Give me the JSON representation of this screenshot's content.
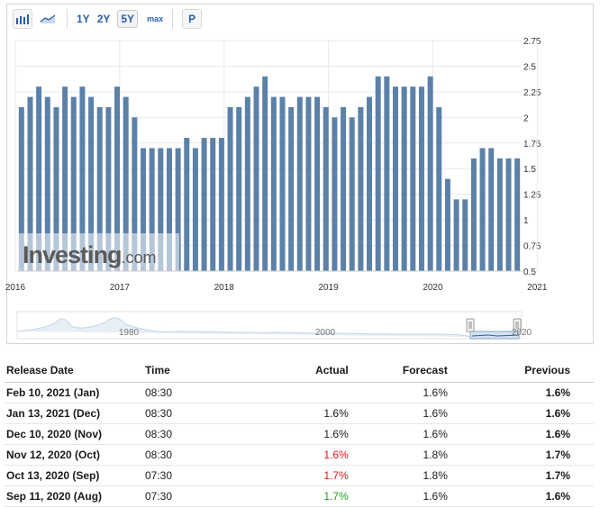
{
  "toolbar": {
    "ranges": [
      "1Y",
      "2Y",
      "5Y"
    ],
    "active_range": "5Y",
    "max_label": "max",
    "p_label": "P",
    "icons": [
      "bar-chart-icon",
      "area-chart-icon"
    ]
  },
  "chart_data": {
    "type": "bar",
    "values": [
      2.1,
      2.2,
      2.3,
      2.2,
      2.1,
      2.3,
      2.2,
      2.3,
      2.2,
      2.1,
      2.1,
      2.3,
      2.2,
      2.0,
      1.7,
      1.7,
      1.7,
      1.7,
      1.7,
      1.8,
      1.7,
      1.8,
      1.8,
      1.8,
      2.1,
      2.1,
      2.2,
      2.3,
      2.4,
      2.2,
      2.2,
      2.1,
      2.2,
      2.2,
      2.2,
      2.1,
      2.0,
      2.1,
      2.0,
      2.1,
      2.2,
      2.4,
      2.4,
      2.3,
      2.3,
      2.3,
      2.3,
      2.4,
      2.1,
      1.4,
      1.2,
      1.2,
      1.6,
      1.7,
      1.7,
      1.6,
      1.6,
      1.6
    ],
    "ylim": [
      0.5,
      2.75
    ],
    "yticks": [
      "0.5",
      "0.75",
      "1",
      "1.25",
      "1.5",
      "1.75",
      "2",
      "2.25",
      "2.5",
      "2.75"
    ],
    "xticks": [
      "2016",
      "2017",
      "2018",
      "2019",
      "2020",
      "2021"
    ],
    "grid": true,
    "color": "#5b81a8",
    "watermark": "Investing.com"
  },
  "navigator": {
    "labels": [
      "1980",
      "2000",
      "2020"
    ]
  },
  "table": {
    "headers": {
      "release_date": "Release Date",
      "time": "Time",
      "actual": "Actual",
      "forecast": "Forecast",
      "previous": "Previous"
    },
    "rows": [
      {
        "date": "Feb 10, 2021 (Jan)",
        "time": "08:30",
        "actual": "",
        "forecast": "1.6%",
        "previous": "1.6%",
        "actual_color": ""
      },
      {
        "date": "Jan 13, 2021 (Dec)",
        "time": "08:30",
        "actual": "1.6%",
        "forecast": "1.6%",
        "previous": "1.6%",
        "actual_color": ""
      },
      {
        "date": "Dec 10, 2020 (Nov)",
        "time": "08:30",
        "actual": "1.6%",
        "forecast": "1.6%",
        "previous": "1.6%",
        "actual_color": ""
      },
      {
        "date": "Nov 12, 2020 (Oct)",
        "time": "08:30",
        "actual": "1.6%",
        "forecast": "1.8%",
        "previous": "1.7%",
        "actual_color": "#e8141b"
      },
      {
        "date": "Oct 13, 2020 (Sep)",
        "time": "07:30",
        "actual": "1.7%",
        "forecast": "1.8%",
        "previous": "1.7%",
        "actual_color": "#e8141b"
      },
      {
        "date": "Sep 11, 2020 (Aug)",
        "time": "07:30",
        "actual": "1.7%",
        "forecast": "1.6%",
        "previous": "1.6%",
        "actual_color": "#1ea01e"
      }
    ]
  }
}
